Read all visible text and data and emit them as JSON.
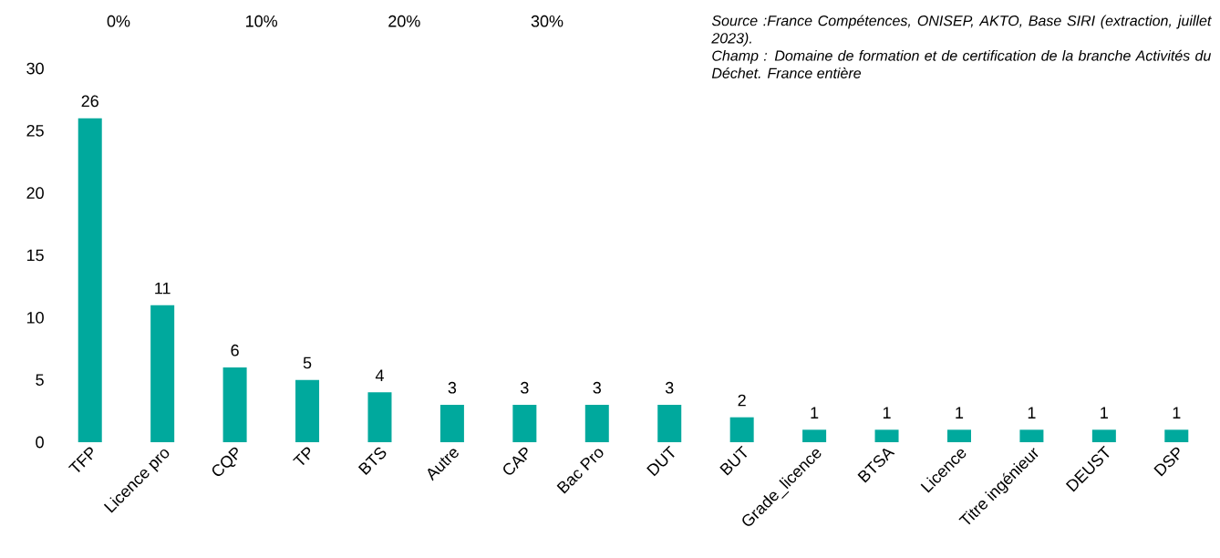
{
  "chart_data": {
    "type": "bar",
    "categories": [
      "TFP",
      "Licence pro",
      "CQP",
      "TP",
      "BTS",
      "Autre",
      "CAP",
      "Bac Pro",
      "DUT",
      "BUT",
      "Grade_licence",
      "BTSA",
      "Licence",
      "Titre ingénieur",
      "DEUST",
      "DSP"
    ],
    "values": [
      26,
      11,
      6,
      5,
      4,
      3,
      3,
      3,
      3,
      2,
      1,
      1,
      1,
      1,
      1,
      1
    ],
    "color": "#00a99d",
    "data_labels": true,
    "ylim": [
      0,
      30
    ],
    "yticks": [
      0,
      5,
      10,
      15,
      20,
      25,
      30
    ],
    "x2lim": [
      0,
      30
    ],
    "x2ticks": [
      {
        "value": 0,
        "label": "0%"
      },
      {
        "value": 10,
        "label": "10%"
      },
      {
        "value": 20,
        "label": "20%"
      },
      {
        "value": 30,
        "label": "30%"
      }
    ],
    "grid": false,
    "annotations": [
      "Source :France Compétences, ONISEP, AKTO, Base SIRI (extraction, juillet 2023).",
      "Champ : Domaine de formation  et de certification de la branche Activités du Déchet. France entière"
    ]
  }
}
